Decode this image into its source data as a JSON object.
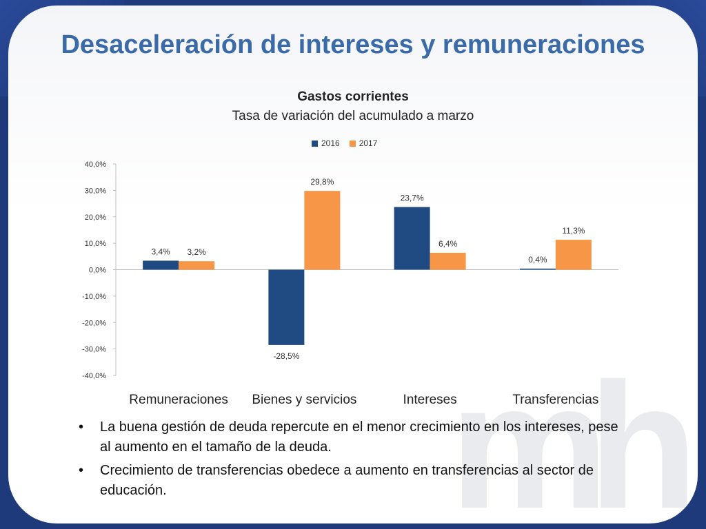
{
  "slide": {
    "title": "Desaceleración de intereses y remuneraciones"
  },
  "colors": {
    "series_2016": "#1f4b82",
    "series_2017": "#f79646",
    "title": "#3a6aa8"
  },
  "chart_data": {
    "type": "bar",
    "title": "Gastos corrientes",
    "subtitle": "Tasa de variación del acumulado a marzo",
    "xlabel": "",
    "ylabel": "",
    "categories": [
      "Remuneraciones",
      "Bienes y servicios",
      "Intereses",
      "Transferencias"
    ],
    "series": [
      {
        "name": "2016",
        "values": [
          3.4,
          -28.5,
          23.7,
          0.4
        ],
        "labels": [
          "3,4%",
          "-28,5%",
          "23,7%",
          "0,4%"
        ]
      },
      {
        "name": "2017",
        "values": [
          3.2,
          29.8,
          6.4,
          11.3
        ],
        "labels": [
          "3,2%",
          "29,8%",
          "6,4%",
          "11,3%"
        ]
      }
    ],
    "ylim": [
      -40,
      40
    ],
    "yticks": [
      40,
      30,
      20,
      10,
      0,
      -10,
      -20,
      -30,
      -40
    ],
    "ytick_labels": [
      "40,0%",
      "30,0%",
      "20,0%",
      "10,0%",
      "0,0%",
      "-10,0%",
      "-20,0%",
      "-30,0%",
      "-40,0%"
    ],
    "grid": false,
    "legend": "top"
  },
  "bullets": [
    "La buena gestión de deuda  repercute en el menor crecimiento en los intereses, pese al aumento en el tamaño de la deuda.",
    "Crecimiento de transferencias obedece a aumento en transferencias al sector de educación."
  ]
}
